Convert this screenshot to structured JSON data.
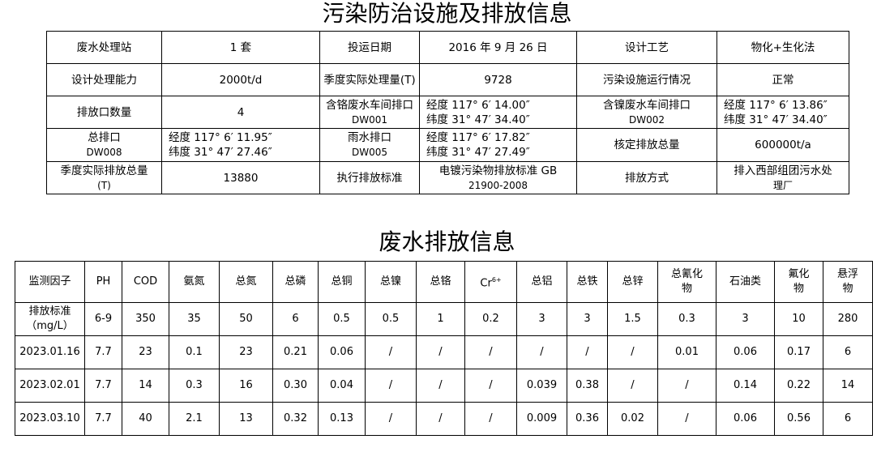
{
  "title1": "污染防治设施及排放信息",
  "facility": [
    [
      {
        "t": "废水处理站"
      },
      {
        "t": "1 套"
      },
      {
        "t": "投运日期"
      },
      {
        "t": "2016 年 9 月 26 日"
      },
      {
        "t": "设计工艺"
      },
      {
        "t": "物化+生化法"
      }
    ],
    [
      {
        "t": "设计处理能力"
      },
      {
        "t": "2000t/d"
      },
      {
        "t": "季度实际处理量(T)"
      },
      {
        "t": "9728"
      },
      {
        "t": "污染设施运行情况"
      },
      {
        "t": "正常"
      }
    ],
    [
      {
        "t": "排放口数量"
      },
      {
        "t": "4"
      },
      {
        "t": "含铬废水车间排口",
        "s": "DW001"
      },
      {
        "t": "经度 117° 6′ 14.00″",
        "s": "纬度 31° 47′ 34.40″",
        "c": 1
      },
      {
        "t": "含镍废水车间排口",
        "s": "DW002"
      },
      {
        "t": "经度 117° 6′ 13.86″",
        "s": "纬度 31° 47′ 34.40″",
        "c": 1
      }
    ],
    [
      {
        "t": "总排口",
        "s": "DW008"
      },
      {
        "t": "经度 117° 6′ 11.95″",
        "s": "纬度 31° 47′ 27.46″",
        "c": 1
      },
      {
        "t": "雨水排口",
        "s": "DW005"
      },
      {
        "t": "经度 117° 6′ 17.82″",
        "s": "纬度 31° 47′ 27.49″",
        "c": 1
      },
      {
        "t": "核定排放总量"
      },
      {
        "t": "600000t/a"
      }
    ],
    [
      {
        "t": "季度实际排放总量",
        "s": "(T)"
      },
      {
        "t": "13880"
      },
      {
        "t": "执行排放标准"
      },
      {
        "t": "电镀污染物排放标准 GB",
        "s": "21900-2008"
      },
      {
        "t": "排放方式"
      },
      {
        "t": "排入西部组团污水处",
        "s": "理厂"
      }
    ]
  ],
  "title2": "废水排放信息",
  "emission": {
    "headers": [
      [
        "监测因子"
      ],
      [
        "PH"
      ],
      [
        "COD"
      ],
      [
        "氨氮"
      ],
      [
        "总氮"
      ],
      [
        "总磷"
      ],
      [
        "总铜"
      ],
      [
        "总镍"
      ],
      [
        "总铬"
      ],
      [
        "Cr",
        "6+"
      ],
      [
        "总铝"
      ],
      [
        "总铁"
      ],
      [
        "总锌"
      ],
      [
        "总氰化",
        "物"
      ],
      [
        "石油类"
      ],
      [
        "氟化",
        "物"
      ],
      [
        "悬浮",
        "物"
      ]
    ],
    "standard_label": [
      "排放标准",
      "（mg/L）"
    ],
    "standard": [
      "6-9",
      "350",
      "35",
      "50",
      "6",
      "0.5",
      "0.5",
      "1",
      "0.2",
      "3",
      "3",
      "1.5",
      "0.3",
      "3",
      "10",
      "280"
    ],
    "rows": [
      [
        "2023.01.16",
        "7.7",
        "23",
        "0.1",
        "23",
        "0.21",
        "0.06",
        "/",
        "/",
        "/",
        "/",
        "/",
        "/",
        "0.01",
        "0.06",
        "0.17",
        "6"
      ],
      [
        "2023.02.01",
        "7.7",
        "14",
        "0.3",
        "16",
        "0.30",
        "0.04",
        "/",
        "/",
        "/",
        "0.039",
        "0.38",
        "/",
        "/",
        "0.14",
        "0.22",
        "14"
      ],
      [
        "2023.03.10",
        "7.7",
        "40",
        "2.1",
        "13",
        "0.32",
        "0.13",
        "/",
        "/",
        "/",
        "0.009",
        "0.36",
        "0.02",
        "/",
        "0.06",
        "0.56",
        "6"
      ]
    ]
  }
}
